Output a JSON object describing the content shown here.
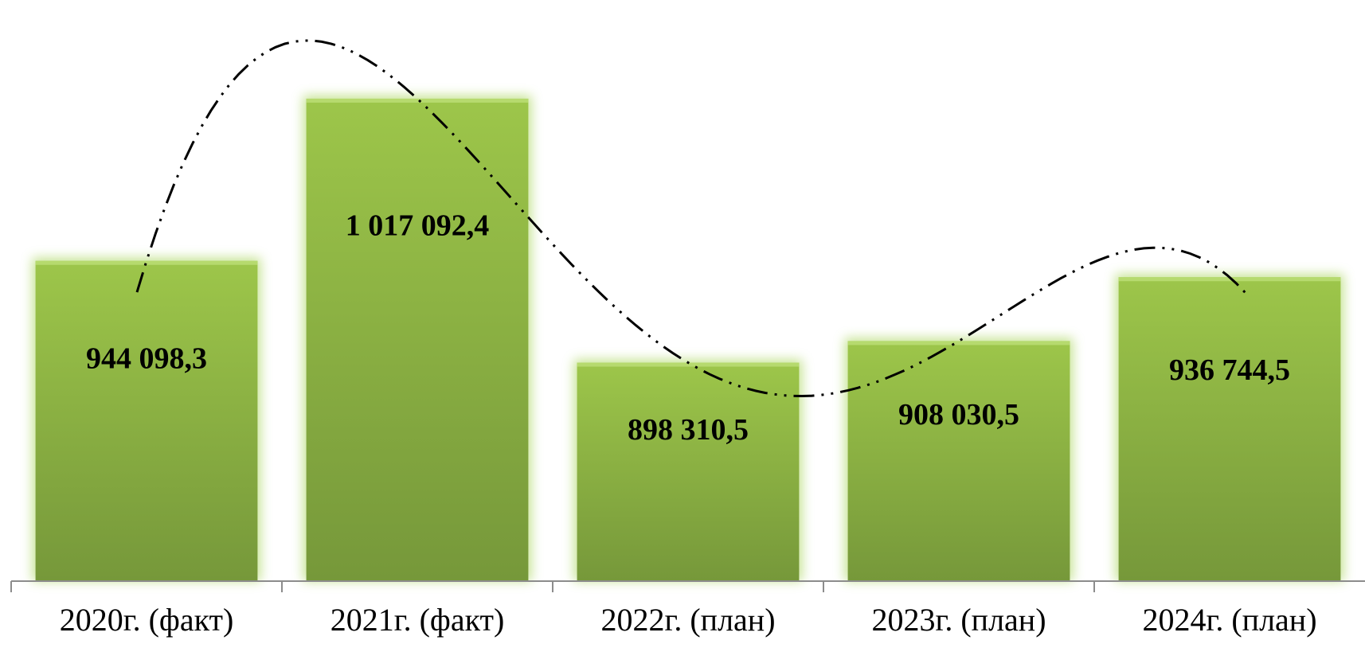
{
  "chart_data": {
    "type": "bar",
    "categories": [
      "2020г. (факт)",
      "2021г. (факт)",
      "2022г. (план)",
      "2023г. (план)",
      "2024г. (план)"
    ],
    "values": [
      944098.3,
      1017092.4,
      898310.5,
      908030.5,
      936744.5
    ],
    "data_labels": [
      "944 098,3",
      "1 017 092,4",
      "898 310,5",
      "908 030,5",
      "936 744,5"
    ],
    "ylim": [
      800000,
      1040000
    ],
    "grid": false,
    "legend": "none",
    "trendline": {
      "style": "dash-dot-dot",
      "color": "#000000",
      "type": "polynomial"
    },
    "colors": {
      "bar_top": "#9dc64a",
      "bar_bottom": "#76983a",
      "glow": "#b9dd7a",
      "axis": "#8c8c8c"
    }
  }
}
